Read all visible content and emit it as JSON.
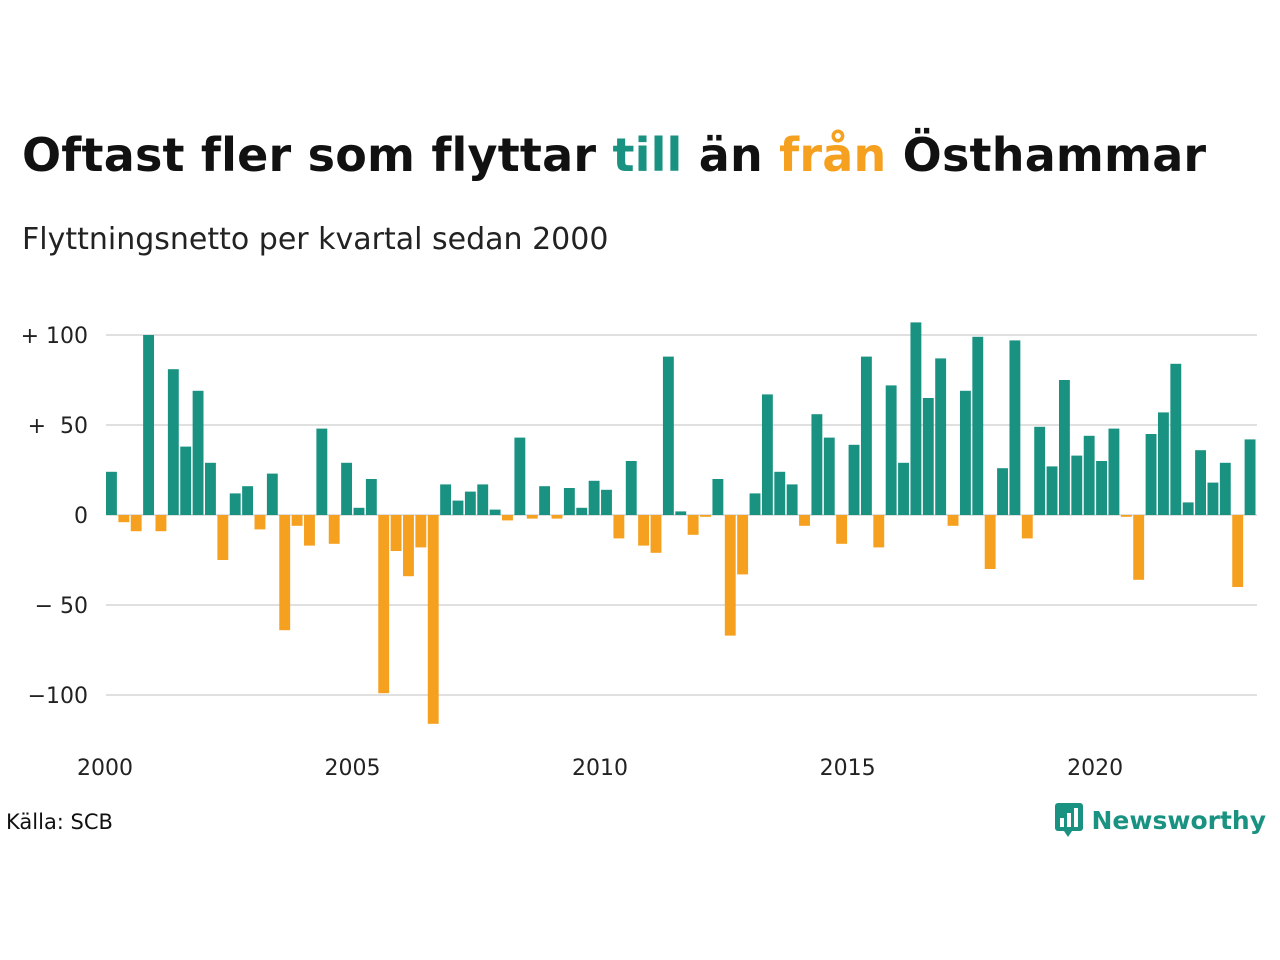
{
  "title": {
    "part1": "Oftast fler som flyttar ",
    "part2": "till",
    "part3": " än ",
    "part4": "från",
    "part5": " Östhammar"
  },
  "subtitle": "Flyttningsnetto per kvartal sedan 2000",
  "source": "Källa: SCB",
  "brand": "Newsworthy",
  "colors": {
    "positive": "#1a9282",
    "negative": "#f5a01e",
    "grid": "#e0e0e0"
  },
  "chart_data": {
    "type": "bar",
    "title": "Oftast fler som flyttar till än från Östhammar",
    "subtitle": "Flyttningsnetto per kvartal sedan 2000",
    "xlabel": "",
    "ylabel": "",
    "ylim": [
      -125,
      110
    ],
    "xlim": [
      2000,
      2023.25
    ],
    "grid": true,
    "legend": "none",
    "yticks": [
      {
        "value": 100,
        "label": "+ 100"
      },
      {
        "value": 50,
        "label": "+  50"
      },
      {
        "value": 0,
        "label": "0"
      },
      {
        "value": -50,
        "label": "− 50"
      },
      {
        "value": -100,
        "label": "−100"
      }
    ],
    "xticks": [
      {
        "value": 2000,
        "label": "2000"
      },
      {
        "value": 2005,
        "label": "2005"
      },
      {
        "value": 2010,
        "label": "2010"
      },
      {
        "value": 2015,
        "label": "2015"
      },
      {
        "value": 2020,
        "label": "2020"
      }
    ],
    "series": [
      {
        "start_year": 2000,
        "periods_per_year": 4,
        "values": [
          24,
          -4,
          -9,
          100,
          -9,
          81,
          38,
          69,
          29,
          -25,
          12,
          16,
          -8,
          23,
          -64,
          -6,
          -17,
          48,
          -16,
          29,
          4,
          20,
          -99,
          -20,
          -34,
          -18,
          -116,
          17,
          8,
          13,
          17,
          3,
          -3,
          43,
          -2,
          16,
          -2,
          15,
          4,
          19,
          14,
          -13,
          30,
          -17,
          -21,
          88,
          2,
          -11,
          -1,
          20,
          -67,
          -33,
          12,
          67,
          24,
          17,
          -6,
          56,
          43,
          -16,
          39,
          88,
          -18,
          72,
          29,
          107,
          65,
          87,
          -6,
          69,
          99,
          -30,
          26,
          97,
          -13,
          49,
          27,
          75,
          33,
          44,
          30,
          48,
          -1,
          -36,
          45,
          57,
          84,
          7,
          36,
          18,
          29,
          -40,
          42
        ]
      }
    ]
  }
}
